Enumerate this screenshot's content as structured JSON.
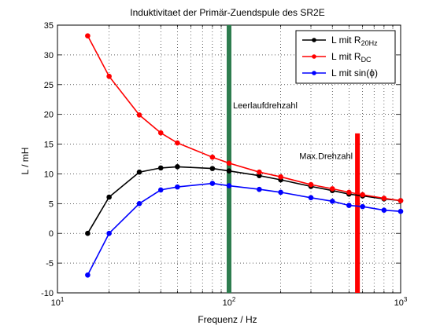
{
  "chart_data": {
    "type": "line",
    "title": "Induktivitaet der Primär-Zuendspule des SR2E",
    "xlabel": "Frequenz / Hz",
    "ylabel": "L / mH",
    "xscale": "log",
    "xlim": [
      10,
      1000
    ],
    "ylim": [
      -10,
      35
    ],
    "grid": "dotted",
    "legend_position": "top-right",
    "x_ticks": [
      {
        "base": "10",
        "exp": "1",
        "value": 10
      },
      {
        "base": "10",
        "exp": "2",
        "value": 100
      },
      {
        "base": "10",
        "exp": "3",
        "value": 1000
      }
    ],
    "y_ticks": [
      -10,
      -5,
      0,
      5,
      10,
      15,
      20,
      25,
      30,
      35
    ],
    "series": [
      {
        "name_main": "L mit R",
        "name_sub": "20Hz",
        "color": "#000000",
        "x": [
          15,
          20,
          30,
          40,
          50,
          80,
          100,
          150,
          200,
          300,
          400,
          500,
          600,
          800,
          1000
        ],
        "y": [
          0,
          6.1,
          10.3,
          11.0,
          11.2,
          10.9,
          10.5,
          9.7,
          9.0,
          7.9,
          7.2,
          6.6,
          6.3,
          5.8,
          5.5
        ]
      },
      {
        "name_main": "L mit R",
        "name_sub": "DC",
        "color": "#ff0000",
        "x": [
          15,
          20,
          30,
          40,
          50,
          80,
          100,
          150,
          200,
          300,
          400,
          500,
          600,
          800,
          1000
        ],
        "y": [
          33.2,
          26.4,
          19.9,
          16.9,
          15.2,
          12.8,
          11.8,
          10.3,
          9.5,
          8.2,
          7.5,
          6.9,
          6.5,
          5.9,
          5.5
        ]
      },
      {
        "name_main": "L mit sin(ϕ)",
        "name_sub": "",
        "color": "#0000ff",
        "x": [
          15,
          20,
          30,
          40,
          50,
          80,
          100,
          150,
          200,
          300,
          400,
          500,
          600,
          800,
          1000
        ],
        "y": [
          -7.0,
          0.0,
          5.0,
          7.3,
          7.8,
          8.4,
          8.0,
          7.4,
          6.9,
          6.0,
          5.4,
          4.7,
          4.5,
          3.9,
          3.7
        ]
      }
    ],
    "markers": [
      {
        "label": "Leerlaufdrehzahl",
        "x": 100,
        "y_from": -10,
        "y_to": 35,
        "color": "#2e7d4f",
        "label_y": 21
      },
      {
        "label": "Max.Drehzahl",
        "x": 560,
        "y_from": -10,
        "y_to": 16.8,
        "color": "#ff0000",
        "label_y": 12.5
      }
    ]
  }
}
